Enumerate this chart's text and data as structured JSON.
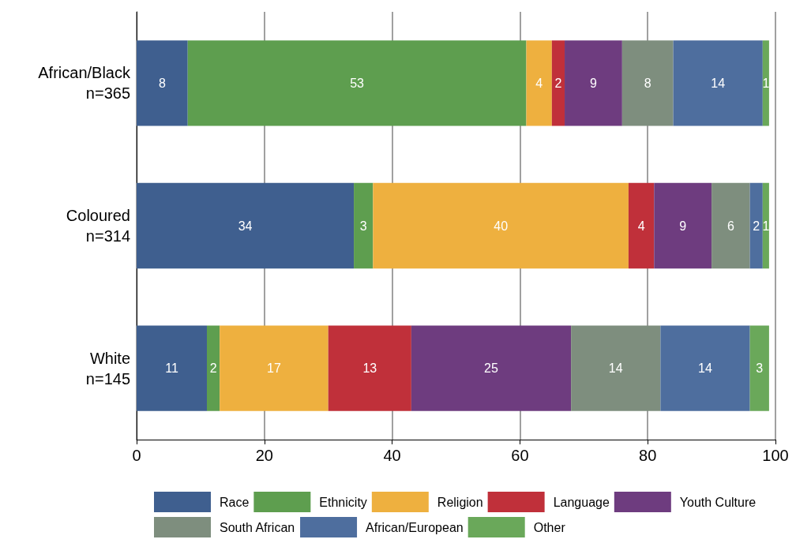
{
  "chart_data": {
    "type": "bar",
    "orientation": "horizontal",
    "stacked": true,
    "data_labels": true,
    "categories": [
      "African/Black\nn=365",
      "Coloured\nn=314",
      "White\nn=145"
    ],
    "series": [
      {
        "name": "Race",
        "color": "#3f5f8f",
        "values": [
          8,
          34,
          11
        ]
      },
      {
        "name": "Ethnicity",
        "color": "#5e9e4f",
        "values": [
          53,
          3,
          2
        ]
      },
      {
        "name": "Religion",
        "color": "#eeb03f",
        "values": [
          4,
          40,
          17
        ]
      },
      {
        "name": "Language",
        "color": "#c0303a",
        "values": [
          2,
          4,
          13
        ]
      },
      {
        "name": "Youth Culture",
        "color": "#6e3c7f",
        "values": [
          9,
          9,
          25
        ]
      },
      {
        "name": "South African",
        "color": "#7e8e7e",
        "values": [
          8,
          6,
          14
        ]
      },
      {
        "name": "African/European",
        "color": "#4e6e9e",
        "values": [
          14,
          2,
          14
        ]
      },
      {
        "name": "Other",
        "color": "#6aa85a",
        "values": [
          1,
          1,
          3
        ]
      }
    ],
    "xlim": [
      0,
      100
    ],
    "xticks": [
      0,
      20,
      40,
      60,
      80,
      100
    ],
    "grid": "x",
    "legend": "bottom"
  }
}
